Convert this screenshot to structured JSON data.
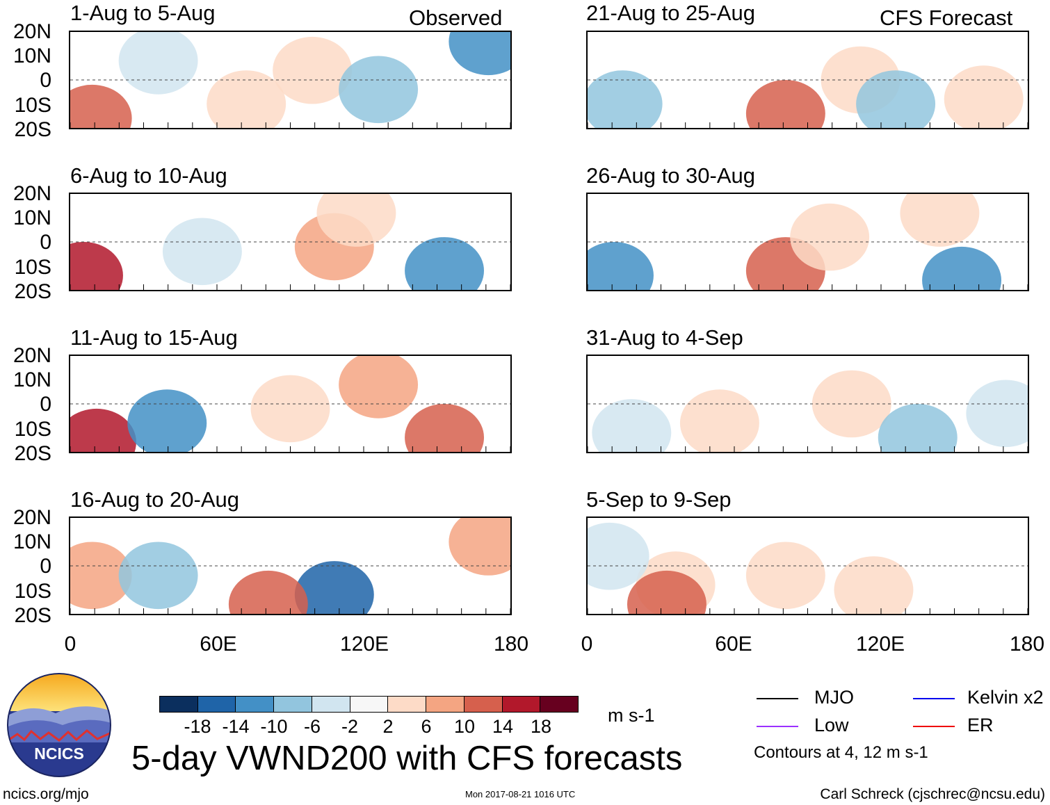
{
  "source_labels": {
    "observed": "Observed",
    "forecast": "CFS Forecast"
  },
  "panels": [
    {
      "title": "1-Aug to 5-Aug",
      "source": "observed"
    },
    {
      "title": "6-Aug to 10-Aug",
      "source": "observed"
    },
    {
      "title": "11-Aug to 15-Aug",
      "source": "observed"
    },
    {
      "title": "16-Aug to 20-Aug",
      "source": "observed"
    },
    {
      "title": "21-Aug to 25-Aug",
      "source": "forecast"
    },
    {
      "title": "26-Aug to 30-Aug",
      "source": "forecast"
    },
    {
      "title": "31-Aug to 4-Sep",
      "source": "forecast"
    },
    {
      "title": "5-Sep to 9-Sep",
      "source": "forecast"
    }
  ],
  "lat_ticks": [
    "20N",
    "10N",
    "0",
    "10S",
    "20S"
  ],
  "lon_ticks": [
    "0",
    "60E",
    "120E",
    "180"
  ],
  "colorbar": {
    "colors": [
      "#0b2f5e",
      "#1f64a8",
      "#4390c6",
      "#92c5de",
      "#d1e5f0",
      "#f7f7f7",
      "#fddbc7",
      "#f4a582",
      "#d6604d",
      "#b2182b",
      "#67001f"
    ],
    "ticks": [
      "-18",
      "-14",
      "-10",
      "-6",
      "-2",
      "2",
      "6",
      "10",
      "14",
      "18"
    ],
    "units": "m s-1"
  },
  "title": "5-day VWND200 with CFS forecasts",
  "legend": {
    "items": [
      {
        "label": "MJO",
        "color": "#000000"
      },
      {
        "label": "Kelvin x2",
        "color": "#0000ee"
      },
      {
        "label": "Low",
        "color": "#9b30ff"
      },
      {
        "label": "ER",
        "color": "#ee0000"
      }
    ],
    "contour_note": "Contours at 4, 12 m s-1"
  },
  "logo_text": "NCICS",
  "footer": {
    "left": "ncics.org/mjo",
    "middle": "Mon 2017-08-21 1016 UTC",
    "right": "Carl Schreck (cjschrec@ncsu.edu)"
  }
}
